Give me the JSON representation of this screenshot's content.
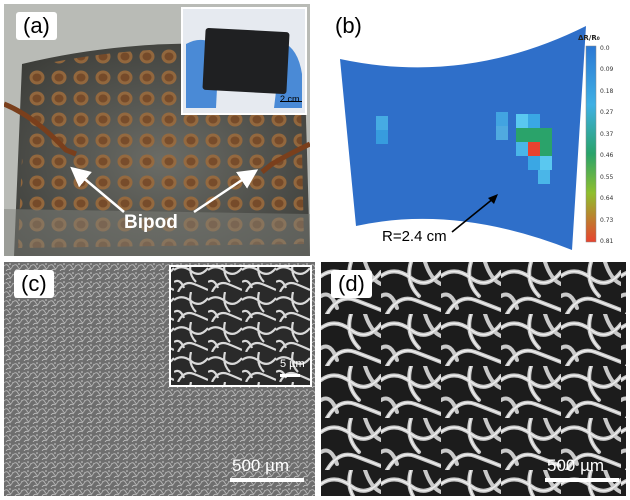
{
  "panels": {
    "a": {
      "label": "(a)",
      "annotation": "Bipod",
      "inset_scalebar": "2 cm"
    },
    "b": {
      "label": "(b)",
      "radius_label": "R=2.4 cm",
      "legend_title": "ΔR/R₀",
      "legend_ticks": [
        "0.0",
        "0.09",
        "0.18",
        "0.27",
        "0.37",
        "0.46",
        "0.55",
        "0.64",
        "0.73",
        "0.81"
      ],
      "colors": {
        "surface": "#2f6fc9",
        "scale_top": "#2b78d4",
        "scale_mid": "#2aa36a",
        "scale_bottom": "#e8432f"
      }
    },
    "c": {
      "label": "(c)",
      "scalebar": "500 µm",
      "inset_scalebar": "5 µm"
    },
    "d": {
      "label": "(d)",
      "scalebar": "500 µm"
    }
  }
}
